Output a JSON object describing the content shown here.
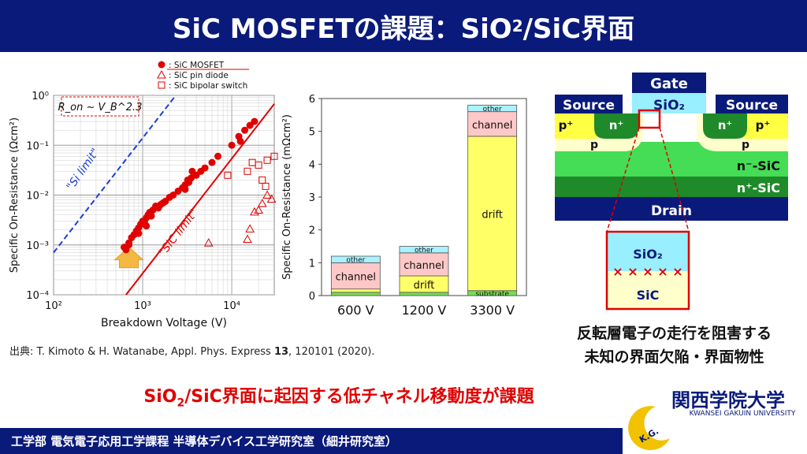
{
  "title": {
    "main": "SiC MOSFETの課題：SiO",
    "sub": "2",
    "tail": "/SiC界面"
  },
  "source": "出典: T. Kimoto & H. Watanabe, Appl. Phys. Express 13, 120101 (2020).",
  "source_parts": {
    "pre": "出典: T. Kimoto & H. Watanabe, Appl. Phys. Express ",
    "vol": "13",
    "post": ", 120101 (2020)."
  },
  "conclusion": {
    "pre": "SiO",
    "sub": "2",
    "post": "/SiC界面に起因する低チャネル移動度が課題"
  },
  "note": {
    "line1": "反転層電子の走行を阻害する",
    "line2": "未知の界面欠陥・界面物性"
  },
  "footer": "工学部 電気電子応用工学課程 半導体デバイス工学研究室（細井研究室）",
  "logo": {
    "name": "関西学院大学",
    "sub": "KWANSEI GAKUIN UNIVERSITY",
    "mark": "K.G."
  },
  "colors": {
    "navy": "#0a1a7a",
    "red": "#e00000",
    "blue": "#1a3fd6",
    "yellow": "#ffff44",
    "green": "#44cc44",
    "dark_green": "#1f8a2a",
    "cyan": "#99eeff",
    "pink": "#ffc8c8",
    "cream": "#ffffcc"
  },
  "device": {
    "gate": "Gate",
    "source_left": "Source",
    "source_right": "Source",
    "oxide": "SiO₂",
    "p_plus": "p⁺",
    "n_plus": "n⁺",
    "p": "p",
    "n_minus_sic": "n⁻-SiC",
    "n_plus_sic": "n⁺-SiC",
    "drain": "Drain",
    "zoom_oxide": "SiO₂",
    "zoom_sic": "SiC",
    "defect_marks": [
      "×",
      "×",
      "×",
      "×",
      "×"
    ]
  },
  "chart_data": [
    {
      "type": "scatter",
      "xlabel": "Breakdown Voltage (V)",
      "ylabel": "Specific On-Resistance (Ωcm²)",
      "xscale": "log",
      "yscale": "log",
      "xlim": [
        100,
        30000
      ],
      "ylim": [
        0.0001,
        1
      ],
      "xticks": [
        "10²",
        "10³",
        "10⁴"
      ],
      "yticks": [
        "10⁻⁴",
        "10⁻³",
        "10⁻²",
        "10⁻¹",
        "10⁰"
      ],
      "formula": "R_on ~ V_B^2.3",
      "limit_labels": {
        "si": "\"Si limit\"",
        "sic": "\"SiC limit\""
      },
      "legend": [
        {
          "name": ": SiC MOSFET",
          "marker": "filled-circle"
        },
        {
          "name": ": SiC pin diode",
          "marker": "open-triangle"
        },
        {
          "name": ": SiC bipolar switch",
          "marker": "open-square"
        }
      ],
      "series": [
        {
          "name": ": SiC MOSFET",
          "points": [
            [
              620,
              0.0009
            ],
            [
              650,
              0.0008
            ],
            [
              700,
              0.0011
            ],
            [
              750,
              0.0014
            ],
            [
              800,
              0.0016
            ],
            [
              850,
              0.0019
            ],
            [
              900,
              0.0022
            ],
            [
              950,
              0.0026
            ],
            [
              1000,
              0.003
            ],
            [
              1050,
              0.0028
            ],
            [
              1100,
              0.0035
            ],
            [
              1150,
              0.004
            ],
            [
              1200,
              0.0045
            ],
            [
              1250,
              0.0038
            ],
            [
              1300,
              0.005
            ],
            [
              1400,
              0.006
            ],
            [
              1500,
              0.0055
            ],
            [
              1600,
              0.0065
            ],
            [
              1700,
              0.007
            ],
            [
              1800,
              0.0075
            ],
            [
              2000,
              0.009
            ],
            [
              2200,
              0.01
            ],
            [
              2500,
              0.012
            ],
            [
              2800,
              0.014
            ],
            [
              3000,
              0.016
            ],
            [
              3200,
              0.02
            ],
            [
              3300,
              0.018
            ],
            [
              3500,
              0.022
            ],
            [
              4000,
              0.025
            ],
            [
              4500,
              0.03
            ],
            [
              5000,
              0.035
            ],
            [
              6000,
              0.045
            ],
            [
              7000,
              0.06
            ],
            [
              10000,
              0.1
            ],
            [
              12000,
              0.15
            ],
            [
              14000,
              0.2
            ],
            [
              16000,
              0.25
            ],
            [
              18000,
              0.3
            ],
            [
              12500,
              0.12
            ],
            [
              700,
              0.001
            ],
            [
              900,
              0.0017
            ],
            [
              1100,
              0.0024
            ],
            [
              3000,
              0.013
            ],
            [
              3600,
              0.03
            ]
          ]
        },
        {
          "name": ": SiC pin diode",
          "points": [
            [
              5500,
              0.0011
            ],
            [
              15000,
              0.0013
            ],
            [
              16000,
              0.0021
            ],
            [
              18000,
              0.0046
            ],
            [
              20000,
              0.005
            ],
            [
              22000,
              0.0068
            ],
            [
              25000,
              0.01
            ],
            [
              28000,
              0.0083
            ]
          ]
        },
        {
          "name": ": SiC bipolar switch",
          "points": [
            [
              9000,
              0.025
            ],
            [
              15000,
              0.03
            ],
            [
              17000,
              0.045
            ],
            [
              20000,
              0.04
            ],
            [
              22000,
              0.02
            ],
            [
              24000,
              0.015
            ],
            [
              25000,
              0.05
            ],
            [
              30000,
              0.06
            ]
          ]
        }
      ]
    },
    {
      "type": "bar",
      "stacked": true,
      "ylabel": "Specific On-Resistance (mΩcm²)",
      "ylim": [
        0,
        6
      ],
      "yticks": [
        "0",
        "1",
        "2",
        "3",
        "4",
        "5",
        "6"
      ],
      "categories": [
        "600 V",
        "1200 V",
        "3300 V"
      ],
      "series": [
        {
          "name": "substrate",
          "values": [
            0.1,
            0.1,
            0.15
          ]
        },
        {
          "name": "drift",
          "values": [
            0.1,
            0.5,
            4.7
          ]
        },
        {
          "name": "channel",
          "values": [
            0.8,
            0.7,
            0.75
          ]
        },
        {
          "name": "other",
          "values": [
            0.2,
            0.2,
            0.2
          ]
        }
      ],
      "segment_labels": [
        [
          "",
          "",
          "channel",
          "other"
        ],
        [
          "",
          "drift",
          "channel",
          "other"
        ],
        [
          "substrate",
          "drift",
          "channel",
          "other"
        ]
      ]
    }
  ]
}
